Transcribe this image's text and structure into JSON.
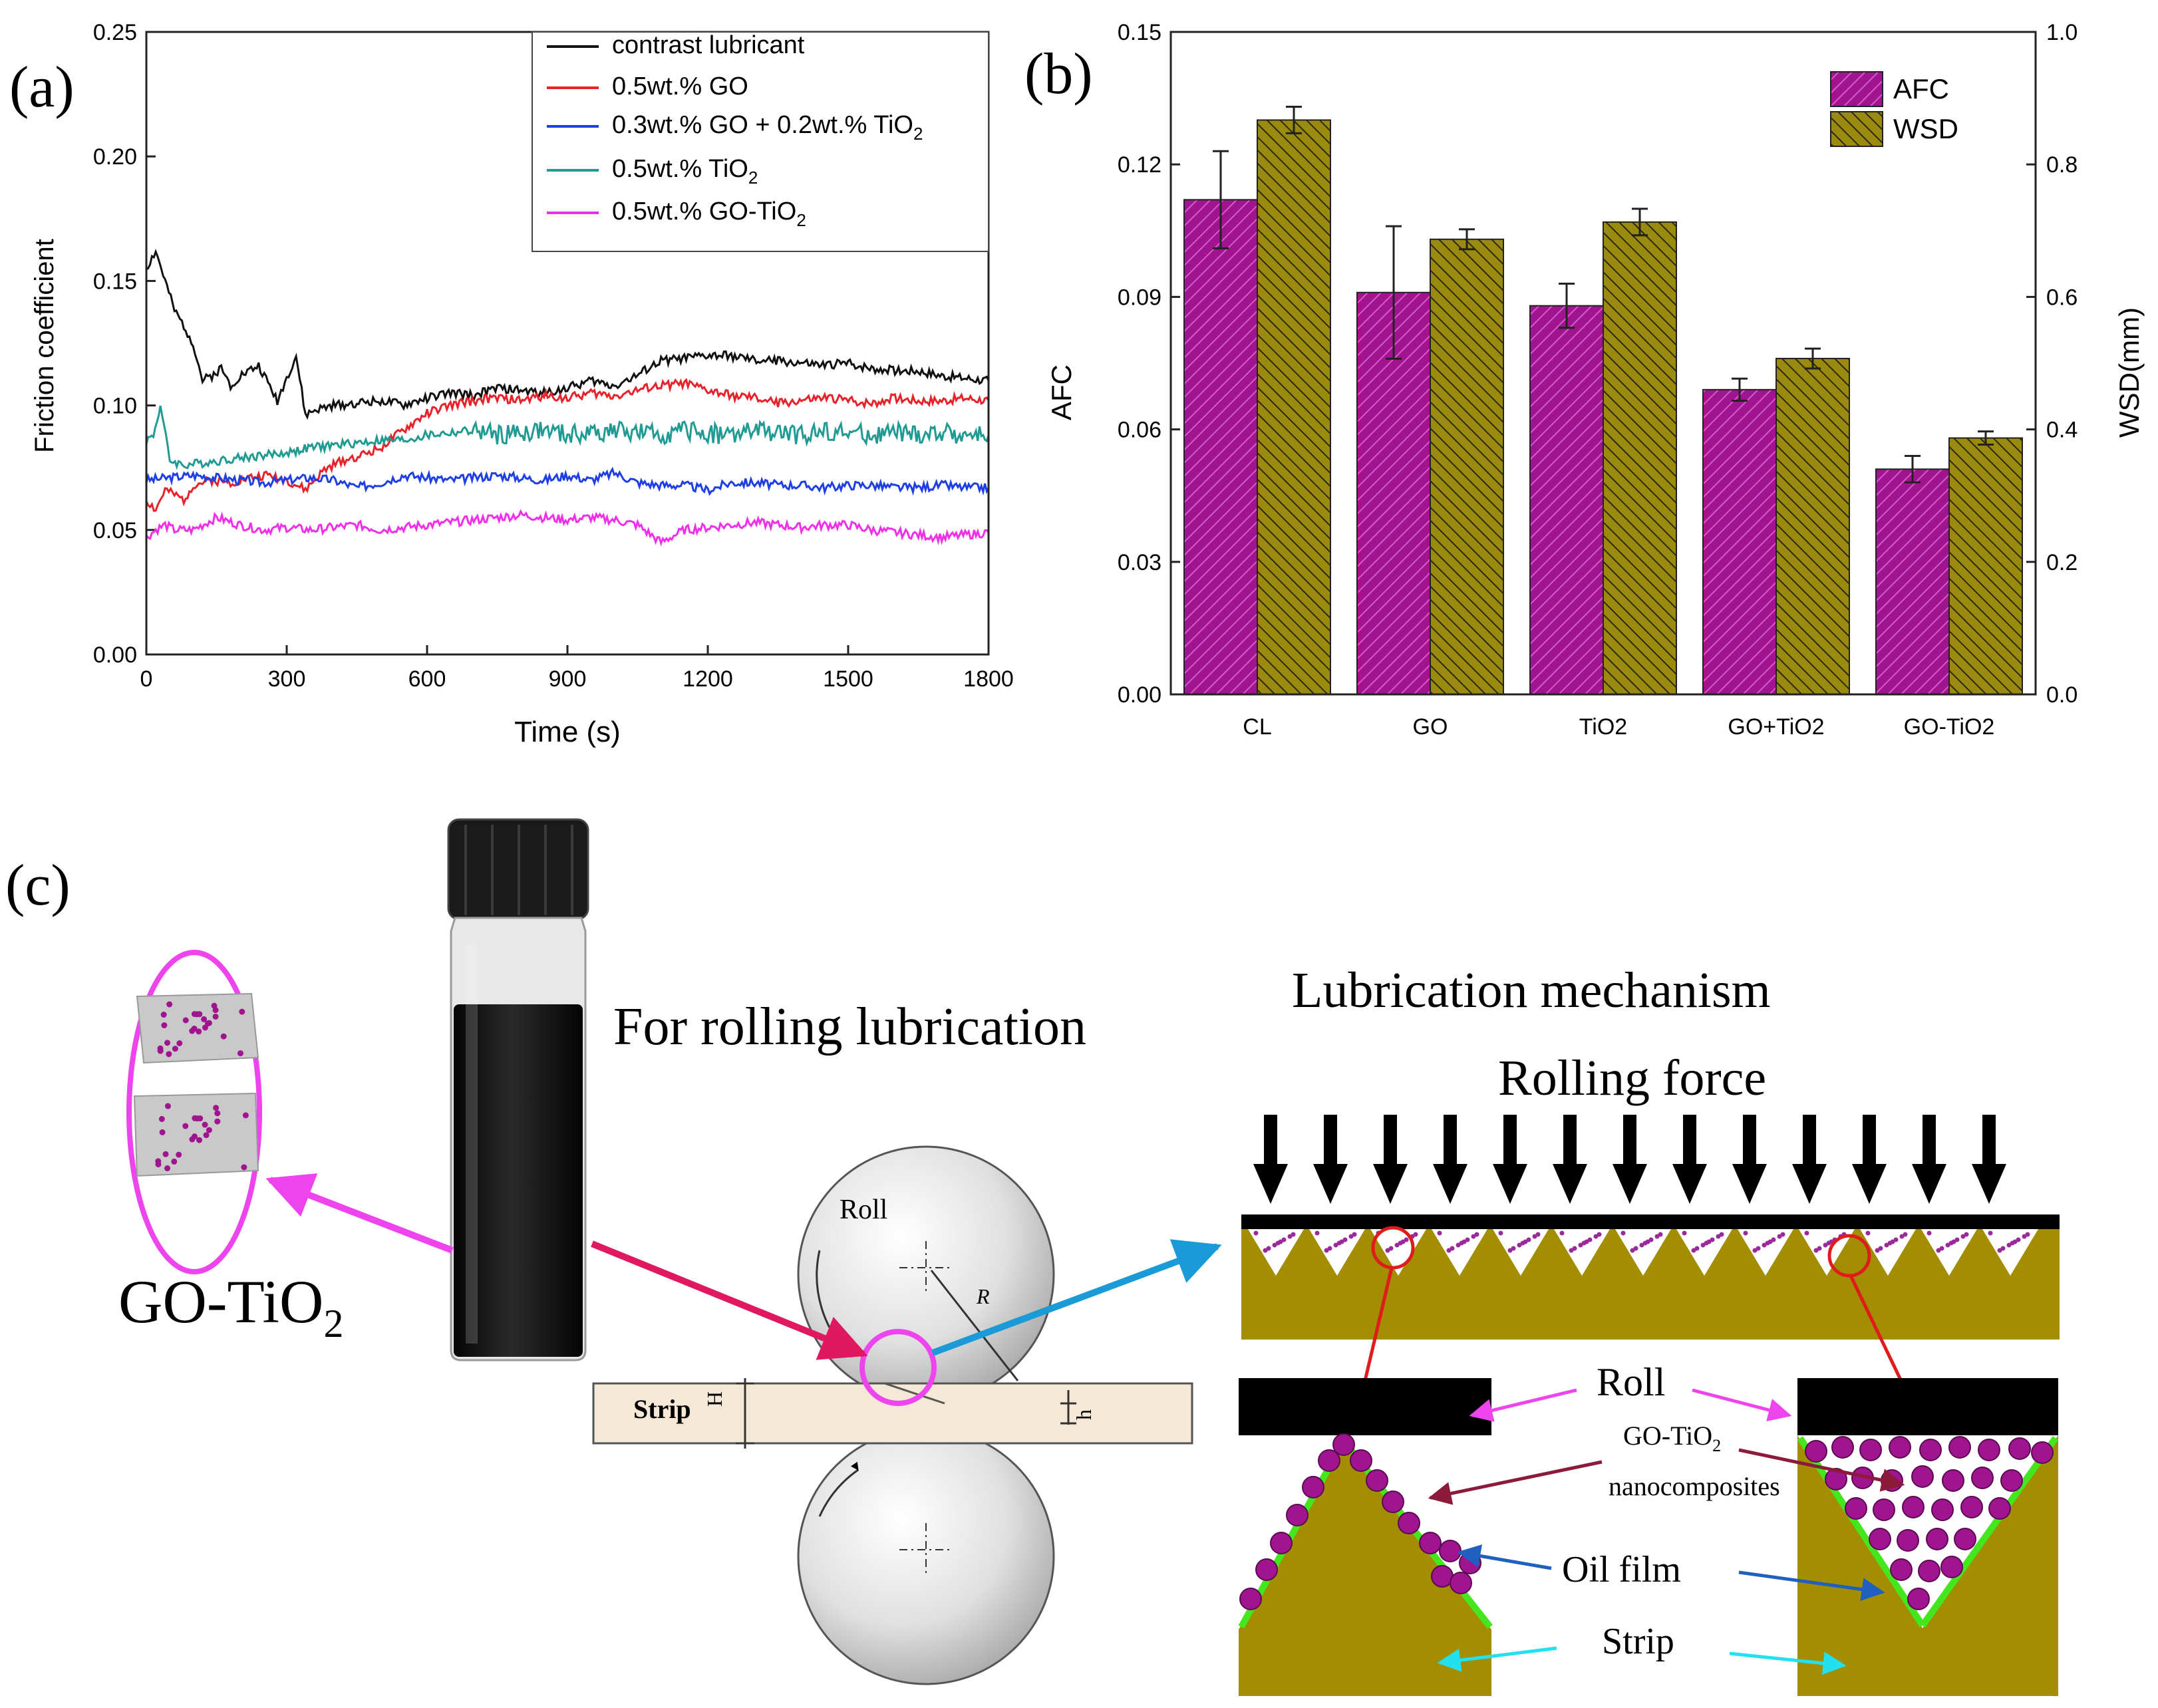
{
  "colors": {
    "contrast": "#111111",
    "go": "#e8222a",
    "go_tio2_mix": "#1f3fe6",
    "tio2": "#1f9b93",
    "go_tio2": "#f030e8",
    "afc": "#a0148f",
    "wsd": "#9a8a10",
    "strip": "#a38d00",
    "film": "#44e61e",
    "red": "#e01b1b",
    "magenta": "#ee44ee",
    "blue_arrow": "#1a9ad6",
    "cyan": "#22e0f0",
    "navy": "#1e5fbf",
    "maroon": "#8b1a3b"
  },
  "panels": {
    "a": {
      "label": "(a)"
    },
    "b": {
      "label": "(b)"
    },
    "c": {
      "label": "(c)"
    }
  },
  "chart_data": [
    {
      "panel": "a",
      "type": "line",
      "xlabel": "Time (s)",
      "ylabel": "Friction coefficient",
      "xlim": [
        0,
        1800
      ],
      "ylim": [
        0,
        0.25
      ],
      "xticks": [
        0,
        300,
        600,
        900,
        1200,
        1500,
        1800
      ],
      "xtick_labels": [
        "0",
        "300",
        "600",
        "900",
        "1200",
        "1500",
        "1800"
      ],
      "yticks": [
        0,
        0.05,
        0.1,
        0.15,
        0.2,
        0.25
      ],
      "ytick_labels": [
        "0.00",
        "0.05",
        "0.10",
        "0.15",
        "0.20",
        "0.25"
      ],
      "legend_position": "top-right",
      "series": [
        {
          "key": "cl",
          "legend_main": "contrast lubricant",
          "legend_sub": "",
          "legend_tail": "",
          "color": "#111111",
          "x": [
            0,
            20,
            40,
            60,
            80,
            100,
            120,
            140,
            160,
            180,
            200,
            240,
            280,
            320,
            340,
            360,
            400,
            450,
            500,
            550,
            600,
            650,
            700,
            750,
            800,
            850,
            900,
            950,
            1000,
            1050,
            1100,
            1150,
            1200,
            1250,
            1300,
            1350,
            1400,
            1450,
            1500,
            1550,
            1600,
            1650,
            1700,
            1750,
            1800
          ],
          "y": [
            0.155,
            0.162,
            0.15,
            0.138,
            0.132,
            0.125,
            0.11,
            0.112,
            0.115,
            0.108,
            0.112,
            0.116,
            0.102,
            0.12,
            0.096,
            0.098,
            0.1,
            0.101,
            0.102,
            0.1,
            0.103,
            0.105,
            0.104,
            0.107,
            0.106,
            0.105,
            0.107,
            0.11,
            0.108,
            0.112,
            0.118,
            0.119,
            0.12,
            0.12,
            0.118,
            0.118,
            0.117,
            0.116,
            0.117,
            0.115,
            0.114,
            0.114,
            0.112,
            0.111,
            0.11
          ]
        },
        {
          "key": "go",
          "legend_main": "0.5wt.% GO",
          "legend_sub": "",
          "legend_tail": "",
          "color": "#e8222a",
          "x": [
            0,
            20,
            40,
            60,
            80,
            100,
            140,
            180,
            220,
            260,
            300,
            340,
            380,
            420,
            460,
            500,
            550,
            600,
            650,
            700,
            750,
            800,
            850,
            900,
            950,
            1000,
            1050,
            1100,
            1150,
            1200,
            1250,
            1300,
            1350,
            1400,
            1450,
            1500,
            1550,
            1600,
            1650,
            1700,
            1750,
            1800
          ],
          "y": [
            0.062,
            0.058,
            0.066,
            0.064,
            0.062,
            0.068,
            0.07,
            0.069,
            0.071,
            0.072,
            0.07,
            0.066,
            0.074,
            0.078,
            0.08,
            0.083,
            0.09,
            0.097,
            0.1,
            0.102,
            0.103,
            0.102,
            0.104,
            0.103,
            0.105,
            0.104,
            0.106,
            0.108,
            0.109,
            0.106,
            0.104,
            0.103,
            0.101,
            0.102,
            0.103,
            0.102,
            0.101,
            0.103,
            0.102,
            0.102,
            0.103,
            0.102
          ]
        },
        {
          "key": "mix",
          "legend_main": "0.3wt.% GO + 0.2wt.% TiO",
          "legend_sub": "2",
          "legend_tail": "",
          "color": "#1f3fe6",
          "x": [
            0,
            50,
            100,
            150,
            200,
            250,
            300,
            350,
            400,
            450,
            500,
            550,
            600,
            650,
            700,
            750,
            800,
            850,
            900,
            950,
            1000,
            1050,
            1100,
            1150,
            1200,
            1250,
            1300,
            1350,
            1400,
            1450,
            1500,
            1550,
            1600,
            1650,
            1700,
            1750,
            1800
          ],
          "y": [
            0.07,
            0.071,
            0.072,
            0.071,
            0.07,
            0.069,
            0.07,
            0.071,
            0.07,
            0.067,
            0.069,
            0.072,
            0.071,
            0.07,
            0.071,
            0.072,
            0.071,
            0.07,
            0.072,
            0.07,
            0.073,
            0.069,
            0.068,
            0.068,
            0.066,
            0.069,
            0.069,
            0.068,
            0.068,
            0.067,
            0.068,
            0.068,
            0.067,
            0.067,
            0.068,
            0.067,
            0.067
          ]
        },
        {
          "key": "tio2",
          "legend_main": "0.5wt.% TiO",
          "legend_sub": "2",
          "legend_tail": "",
          "color": "#1f9b93",
          "x": [
            0,
            15,
            30,
            50,
            80,
            120,
            160,
            200,
            250,
            300,
            350,
            400,
            450,
            500,
            550,
            600,
            650,
            700,
            750,
            800,
            850,
            900,
            950,
            1000,
            1050,
            1100,
            1150,
            1200,
            1250,
            1300,
            1350,
            1400,
            1450,
            1500,
            1550,
            1600,
            1650,
            1700,
            1750,
            1800
          ],
          "y": [
            0.086,
            0.088,
            0.1,
            0.078,
            0.076,
            0.077,
            0.078,
            0.079,
            0.08,
            0.081,
            0.083,
            0.084,
            0.085,
            0.086,
            0.086,
            0.088,
            0.089,
            0.09,
            0.088,
            0.089,
            0.09,
            0.088,
            0.089,
            0.09,
            0.089,
            0.088,
            0.09,
            0.089,
            0.088,
            0.09,
            0.089,
            0.088,
            0.09,
            0.089,
            0.088,
            0.089,
            0.088,
            0.089,
            0.088,
            0.088
          ]
        },
        {
          "key": "gotio2",
          "legend_main": "0.5wt.% GO-TiO",
          "legend_sub": "2",
          "legend_tail": "",
          "color": "#f030e8",
          "x": [
            0,
            20,
            40,
            60,
            100,
            150,
            200,
            250,
            300,
            350,
            400,
            450,
            500,
            550,
            600,
            650,
            700,
            750,
            800,
            850,
            900,
            950,
            1000,
            1050,
            1100,
            1150,
            1200,
            1250,
            1300,
            1350,
            1400,
            1450,
            1500,
            1550,
            1600,
            1650,
            1700,
            1750,
            1800
          ],
          "y": [
            0.047,
            0.05,
            0.052,
            0.05,
            0.05,
            0.055,
            0.052,
            0.05,
            0.051,
            0.05,
            0.051,
            0.052,
            0.05,
            0.051,
            0.052,
            0.053,
            0.054,
            0.055,
            0.056,
            0.055,
            0.054,
            0.055,
            0.054,
            0.052,
            0.045,
            0.05,
            0.051,
            0.052,
            0.053,
            0.052,
            0.051,
            0.052,
            0.052,
            0.05,
            0.049,
            0.048,
            0.047,
            0.048,
            0.049
          ]
        }
      ]
    },
    {
      "panel": "b",
      "type": "bar",
      "categories": [
        "CL",
        "GO",
        "TiO2",
        "GO+TiO2",
        "GO-TiO2"
      ],
      "ylabel": "AFC",
      "y2label": "WSD(mm)",
      "ylim": [
        0,
        0.15
      ],
      "y2lim": [
        0,
        1.0
      ],
      "yticks": [
        0,
        0.03,
        0.06,
        0.09,
        0.12,
        0.15
      ],
      "ytick_labels": [
        "0.00",
        "0.03",
        "0.06",
        "0.09",
        "0.12",
        "0.15"
      ],
      "y2ticks": [
        0,
        0.2,
        0.4,
        0.6,
        0.8,
        1.0
      ],
      "y2tick_labels": [
        "0.0",
        "0.2",
        "0.4",
        "0.6",
        "0.8",
        "1.0"
      ],
      "legend_position": "top-right",
      "series": [
        {
          "name": "AFC",
          "axis": "left",
          "values": [
            0.112,
            0.091,
            0.088,
            0.069,
            0.051
          ],
          "errors": [
            0.011,
            0.015,
            0.005,
            0.0025,
            0.003
          ],
          "color": "#a0148f"
        },
        {
          "name": "WSD",
          "axis": "right",
          "values": [
            0.867,
            0.687,
            0.713,
            0.507,
            0.387
          ],
          "errors": [
            0.02,
            0.015,
            0.02,
            0.015,
            0.01
          ],
          "color": "#9a8a10"
        }
      ]
    }
  ],
  "diagram": {
    "go_tio2_label_main": "GO-TiO",
    "go_tio2_label_sub": "2",
    "rolling_title": "For rolling lubrication",
    "roll_label": "Roll",
    "radius_label": "R",
    "strip_label": "Strip",
    "thick_H": "H",
    "thick_h": "h",
    "mechanism_title": "Lubrication mechanism",
    "rolling_force": "Rolling force",
    "roll_callout": "Roll",
    "nano_line1_main": "GO-TiO",
    "nano_line1_sub": "2",
    "nano_line2": "nanocomposites",
    "oil_film": "Oil film",
    "strip_callout": "Strip"
  }
}
